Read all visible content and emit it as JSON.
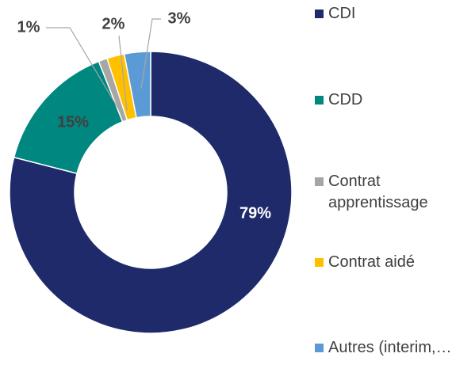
{
  "chart_data": {
    "type": "pie",
    "donut": true,
    "categories": [
      "CDI",
      "CDD",
      "Contrat apprentissage",
      "Contrat aidé",
      "Autres (interim,…)"
    ],
    "values": [
      79,
      15,
      1,
      2,
      3
    ],
    "value_labels": [
      "79%",
      "15%",
      "1%",
      "2%",
      "3%"
    ],
    "colors": [
      "#1f2a6b",
      "#00877f",
      "#a6a6a6",
      "#ffc000",
      "#5b9bd5"
    ],
    "legend": "right"
  }
}
